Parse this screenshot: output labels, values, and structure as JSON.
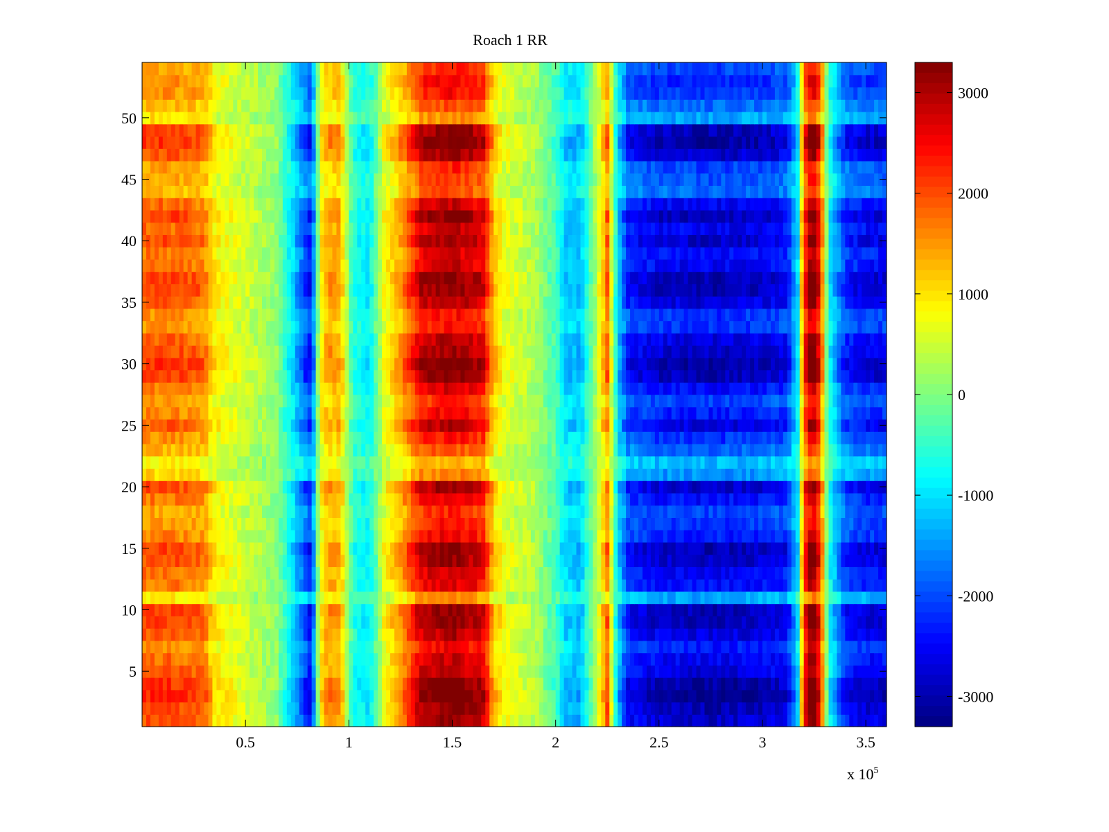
{
  "chart_data": {
    "type": "heatmap",
    "title": "Roach 1 RR",
    "xlabel": "",
    "ylabel": "",
    "x_range": [
      0,
      360000
    ],
    "y_range": [
      0.5,
      54.5
    ],
    "rows": 54,
    "x_tick_values": [
      0.5,
      1,
      1.5,
      2,
      2.5,
      3,
      3.5
    ],
    "x_tick_labels": [
      "0.5",
      "1",
      "1.5",
      "2",
      "2.5",
      "3",
      "3.5"
    ],
    "x_multiplier_label": "x 10",
    "x_multiplier_exponent": "5",
    "y_tick_values": [
      5,
      10,
      15,
      20,
      25,
      30,
      35,
      40,
      45,
      50
    ],
    "y_tick_labels": [
      "5",
      "10",
      "15",
      "20",
      "25",
      "30",
      "35",
      "40",
      "45",
      "50"
    ],
    "colorbar": {
      "colormap": "jet",
      "range": [
        -3300,
        3300
      ],
      "tick_values": [
        -3000,
        -2000,
        -1000,
        0,
        1000,
        2000,
        3000
      ],
      "tick_labels": [
        "-3000",
        "-2000",
        "-1000",
        "0",
        "1000",
        "2000",
        "3000"
      ]
    },
    "column_profile_x_1e5": [
      0.0,
      0.15,
      0.3,
      0.35,
      0.5,
      0.65,
      0.78,
      0.82,
      0.86,
      0.9,
      0.96,
      1.02,
      1.1,
      1.17,
      1.25,
      1.35,
      1.5,
      1.65,
      1.7,
      1.75,
      1.9,
      2.0,
      2.05,
      2.12,
      2.2,
      2.25,
      2.3,
      2.35,
      2.5,
      2.75,
      3.0,
      3.12,
      3.17,
      3.2,
      3.24,
      3.28,
      3.32,
      3.4,
      3.5,
      3.6
    ],
    "column_profile_value": [
      1800,
      1800,
      1650,
      900,
      500,
      100,
      -1800,
      -2300,
      800,
      1400,
      1300,
      -600,
      -900,
      700,
      1400,
      2600,
      2900,
      2500,
      1200,
      700,
      300,
      -400,
      -1100,
      -1200,
      400,
      1700,
      -1100,
      -2200,
      -2500,
      -2600,
      -2500,
      -2300,
      -1000,
      2000,
      3300,
      2200,
      -700,
      -2100,
      -2400,
      -2400
    ],
    "row_modulation": [
      1.1,
      1.15,
      1.25,
      1.2,
      1.05,
      1.0,
      0.9,
      1.05,
      1.15,
      1.15,
      0.55,
      0.95,
      1.0,
      1.1,
      1.15,
      0.9,
      0.85,
      0.8,
      0.95,
      1.1,
      0.6,
      0.5,
      0.7,
      0.85,
      1.05,
      0.9,
      0.8,
      0.95,
      1.15,
      1.2,
      1.1,
      1.05,
      0.85,
      0.85,
      1.05,
      1.15,
      1.15,
      1.0,
      0.95,
      1.1,
      1.0,
      1.15,
      1.0,
      0.7,
      0.75,
      0.8,
      1.1,
      1.2,
      1.15,
      0.55,
      0.7,
      0.85,
      0.9,
      0.8
    ]
  }
}
